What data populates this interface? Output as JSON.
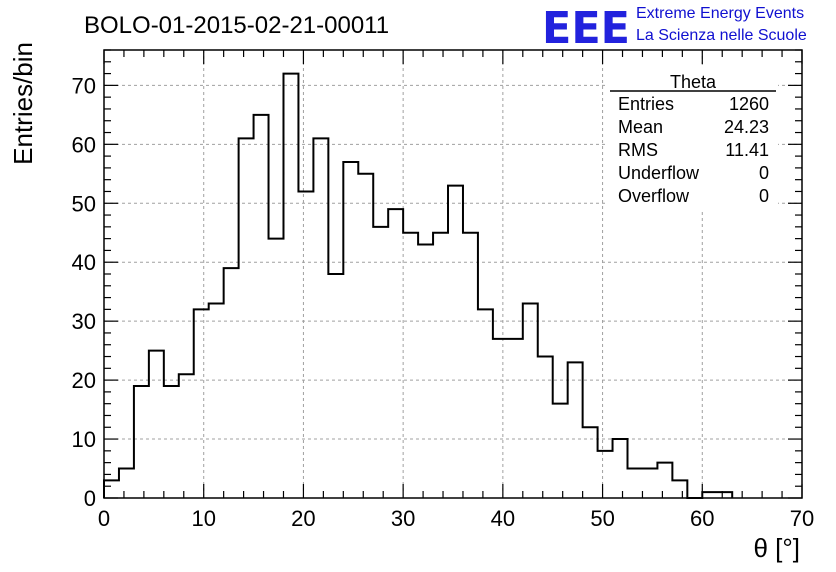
{
  "chart_data": {
    "type": "bar",
    "style": "step-histogram",
    "title": "BOLO-01-2015-02-21-00011",
    "xlabel": "θ [°]",
    "ylabel": "Entries/bin",
    "xlim": [
      0,
      70
    ],
    "ylim": [
      0,
      76
    ],
    "bin_width": 1.5,
    "values": [
      3,
      5,
      19,
      25,
      19,
      21,
      32,
      33,
      39,
      61,
      65,
      44,
      72,
      52,
      61,
      38,
      57,
      55,
      46,
      49,
      45,
      43,
      45,
      53,
      45,
      32,
      27,
      27,
      33,
      24,
      16,
      23,
      12,
      8,
      10,
      5,
      5,
      6,
      3,
      0,
      1,
      1
    ],
    "x_ticks": [
      0,
      10,
      20,
      30,
      40,
      50,
      60,
      70
    ],
    "y_ticks": [
      0,
      10,
      20,
      30,
      40,
      50,
      60,
      70
    ],
    "grid": true,
    "line_color": "#000000"
  },
  "stats_box": {
    "title": "Theta",
    "rows": [
      {
        "label": "Entries",
        "value": "1260"
      },
      {
        "label": "Mean",
        "value": "24.23"
      },
      {
        "label": "RMS",
        "value": "11.41"
      },
      {
        "label": "Underflow",
        "value": "0"
      },
      {
        "label": "Overflow",
        "value": "0"
      }
    ]
  },
  "logo": {
    "letters": "EEE",
    "line1": "Extreme Energy Events",
    "line2": "La Scienza nelle Scuole",
    "color": "#2222dd"
  }
}
